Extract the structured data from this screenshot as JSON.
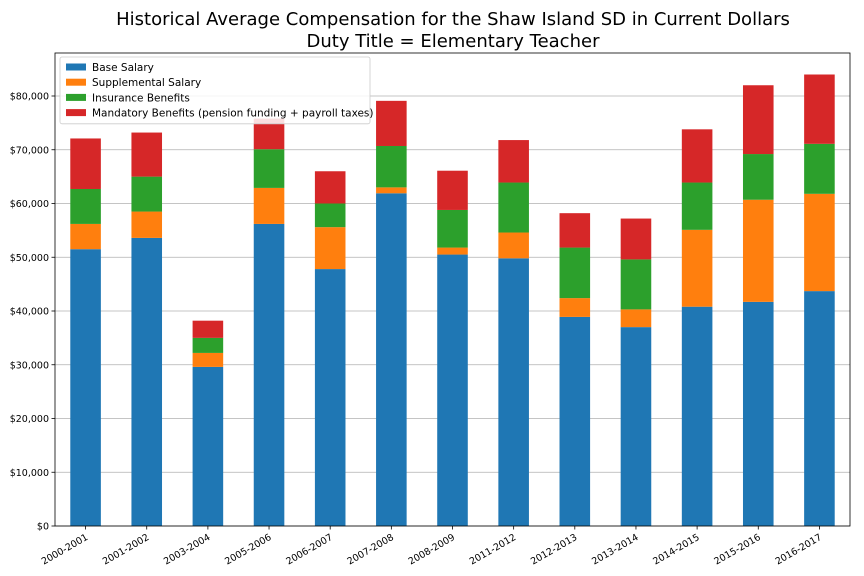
{
  "chart_data": {
    "type": "bar",
    "stacked": true,
    "title": "Historical Average Compensation for the Shaw Island SD in Current Dollars",
    "subtitle": "Duty Title = Elementary Teacher",
    "xlabel": "",
    "ylabel": "",
    "ylim": [
      0,
      88000
    ],
    "yticks": [
      0,
      10000,
      20000,
      30000,
      40000,
      50000,
      60000,
      70000,
      80000
    ],
    "ytick_labels": [
      "$0",
      "$10,000",
      "$20,000",
      "$30,000",
      "$40,000",
      "$50,000",
      "$60,000",
      "$70,000",
      "$80,000"
    ],
    "grid": "horizontal",
    "legend_position": "top-left",
    "categories": [
      "2000-2001",
      "2001-2002",
      "2003-2004",
      "2005-2006",
      "2006-2007",
      "2007-2008",
      "2008-2009",
      "2011-2012",
      "2012-2013",
      "2013-2014",
      "2014-2015",
      "2015-2016",
      "2016-2017"
    ],
    "series": [
      {
        "name": "Base Salary",
        "color": "#1f77b4",
        "values": [
          51500,
          53600,
          29600,
          56200,
          47800,
          61900,
          50500,
          49800,
          38900,
          37000,
          40800,
          41700,
          43700
        ]
      },
      {
        "name": "Supplemental Salary",
        "color": "#ff7f0e",
        "values": [
          4700,
          4900,
          2600,
          6700,
          7800,
          1100,
          1300,
          4800,
          3500,
          3300,
          14300,
          19000,
          18100
        ]
      },
      {
        "name": "Insurance Benefits",
        "color": "#2ca02c",
        "values": [
          6500,
          6500,
          2800,
          7200,
          4400,
          7700,
          7000,
          9300,
          9400,
          9300,
          8800,
          8500,
          9300
        ]
      },
      {
        "name": "Mandatory Benefits (pension funding + payroll taxes)",
        "color": "#d62728",
        "values": [
          9400,
          8200,
          3200,
          5700,
          6000,
          8400,
          7300,
          7900,
          6400,
          7600,
          9900,
          12800,
          12900
        ]
      }
    ]
  }
}
